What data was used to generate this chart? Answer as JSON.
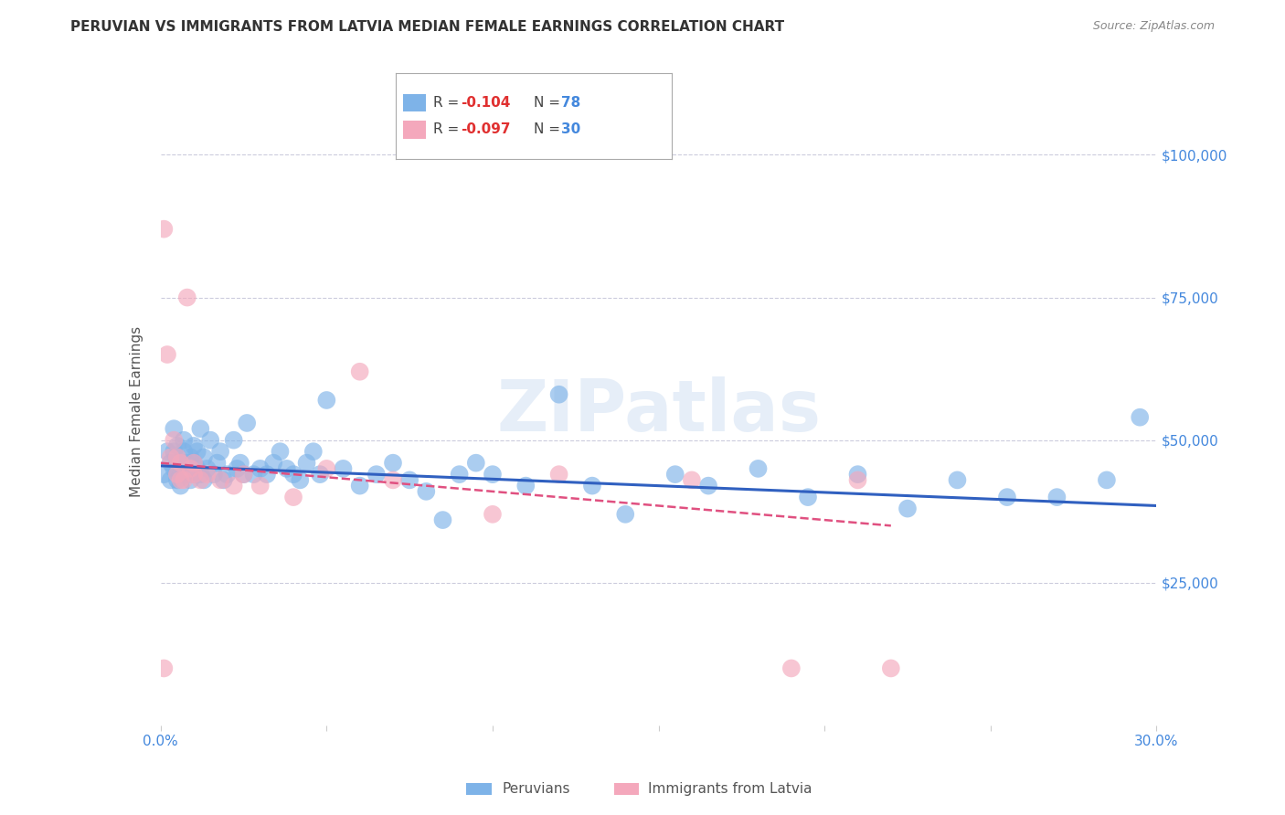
{
  "title": "PERUVIAN VS IMMIGRANTS FROM LATVIA MEDIAN FEMALE EARNINGS CORRELATION CHART",
  "source": "Source: ZipAtlas.com",
  "ylabel": "Median Female Earnings",
  "xlim": [
    0.0,
    0.3
  ],
  "ylim": [
    0,
    110000
  ],
  "blue_color": "#7EB3E8",
  "pink_color": "#F4A8BC",
  "line_blue": "#3060C0",
  "line_pink": "#E05080",
  "axis_color": "#4488DD",
  "legend_r_blue": "-0.104",
  "legend_n_blue": "78",
  "legend_r_pink": "-0.097",
  "legend_n_pink": "30",
  "watermark": "ZIPatlas",
  "background_color": "#ffffff",
  "blue_scatter_x": [
    0.001,
    0.002,
    0.003,
    0.003,
    0.004,
    0.004,
    0.004,
    0.005,
    0.005,
    0.005,
    0.006,
    0.006,
    0.006,
    0.007,
    0.007,
    0.007,
    0.008,
    0.008,
    0.009,
    0.009,
    0.01,
    0.01,
    0.01,
    0.011,
    0.011,
    0.012,
    0.012,
    0.013,
    0.013,
    0.014,
    0.015,
    0.016,
    0.017,
    0.018,
    0.019,
    0.02,
    0.022,
    0.023,
    0.024,
    0.025,
    0.026,
    0.028,
    0.03,
    0.032,
    0.034,
    0.036,
    0.038,
    0.04,
    0.042,
    0.044,
    0.046,
    0.048,
    0.05,
    0.055,
    0.06,
    0.065,
    0.07,
    0.075,
    0.08,
    0.085,
    0.09,
    0.095,
    0.1,
    0.11,
    0.12,
    0.13,
    0.14,
    0.155,
    0.165,
    0.18,
    0.195,
    0.21,
    0.225,
    0.24,
    0.255,
    0.27,
    0.285,
    0.295
  ],
  "blue_scatter_y": [
    44000,
    48000,
    43000,
    46000,
    45000,
    48000,
    52000,
    43000,
    46000,
    49000,
    44000,
    46000,
    42000,
    45000,
    48000,
    50000,
    44000,
    46000,
    43000,
    47000,
    44000,
    46000,
    49000,
    45000,
    48000,
    44000,
    52000,
    43000,
    47000,
    45000,
    50000,
    44000,
    46000,
    48000,
    43000,
    44000,
    50000,
    45000,
    46000,
    44000,
    53000,
    44000,
    45000,
    44000,
    46000,
    48000,
    45000,
    44000,
    43000,
    46000,
    48000,
    44000,
    57000,
    45000,
    42000,
    44000,
    46000,
    43000,
    41000,
    36000,
    44000,
    46000,
    44000,
    42000,
    58000,
    42000,
    37000,
    44000,
    42000,
    45000,
    40000,
    44000,
    38000,
    43000,
    40000,
    40000,
    43000,
    54000
  ],
  "pink_scatter_x": [
    0.001,
    0.001,
    0.002,
    0.003,
    0.004,
    0.005,
    0.005,
    0.006,
    0.006,
    0.007,
    0.008,
    0.009,
    0.01,
    0.01,
    0.012,
    0.014,
    0.018,
    0.022,
    0.025,
    0.03,
    0.04,
    0.05,
    0.06,
    0.07,
    0.1,
    0.12,
    0.16,
    0.19,
    0.21,
    0.22
  ],
  "pink_scatter_y": [
    87000,
    10000,
    65000,
    47000,
    50000,
    47000,
    44000,
    46000,
    43000,
    43000,
    75000,
    45000,
    44000,
    46000,
    43000,
    44000,
    43000,
    42000,
    44000,
    42000,
    40000,
    45000,
    62000,
    43000,
    37000,
    44000,
    43000,
    10000,
    43000,
    10000
  ],
  "blue_line_x0": 0.0,
  "blue_line_x1": 0.3,
  "blue_line_y0": 45500,
  "blue_line_y1": 38500,
  "pink_line_x0": 0.0,
  "pink_line_x1": 0.22,
  "pink_line_y0": 46000,
  "pink_line_y1": 35000
}
